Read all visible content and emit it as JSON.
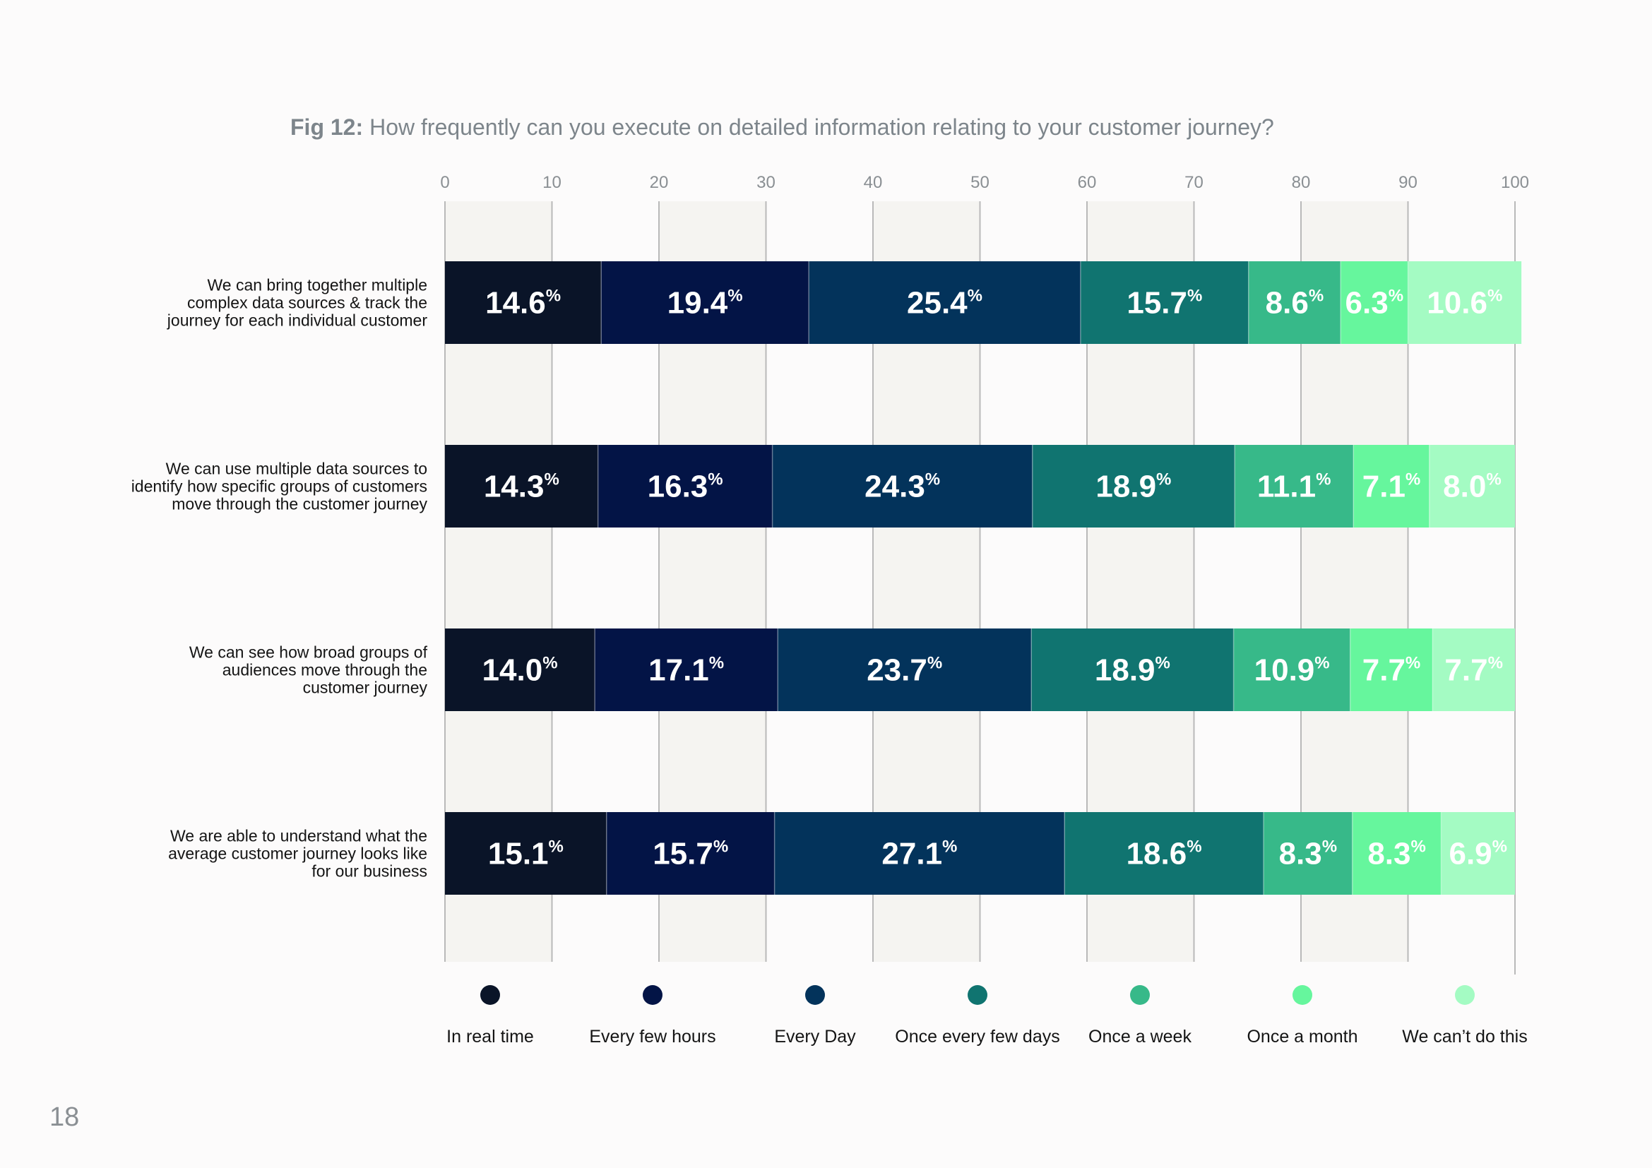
{
  "page": {
    "number": "18"
  },
  "chart_data": {
    "type": "bar",
    "orientation": "horizontal",
    "stacked": true,
    "title_prefix": "Fig 12:",
    "title": "How frequently can you execute on detailed information relating to your customer journey?",
    "xlim": [
      0,
      100
    ],
    "x_ticks": [
      0,
      10,
      20,
      30,
      40,
      50,
      60,
      70,
      80,
      90,
      100
    ],
    "grid": true,
    "legend_position": "bottom",
    "value_suffix": "%",
    "categories": [
      [
        "We can bring together multiple",
        "complex data sources & track the",
        "journey for each individual customer"
      ],
      [
        "We can use multiple data sources to",
        "identify how specific groups of customers",
        "move through the customer journey"
      ],
      [
        "We can see how broad groups of",
        "audiences move through the",
        "customer journey"
      ],
      [
        "We are able to understand what the",
        "average customer journey looks like",
        "for our business"
      ]
    ],
    "series": [
      {
        "name": "In real time",
        "color": "#0a1428",
        "values": [
          14.6,
          14.3,
          14.0,
          15.1
        ]
      },
      {
        "name": "Every few hours",
        "color": "#031446",
        "values": [
          19.4,
          16.3,
          17.1,
          15.7
        ]
      },
      {
        "name": "Every Day",
        "color": "#03335b",
        "values": [
          25.4,
          24.3,
          23.7,
          27.1
        ]
      },
      {
        "name": "Once every few days",
        "color": "#107470",
        "values": [
          15.7,
          18.9,
          18.9,
          18.6
        ]
      },
      {
        "name": "Once a week",
        "color": "#37b989",
        "values": [
          8.6,
          11.1,
          10.9,
          8.3
        ]
      },
      {
        "name": "Once a month",
        "color": "#66f69d",
        "values": [
          6.3,
          7.1,
          7.7,
          8.3
        ]
      },
      {
        "name": "We can’t do this",
        "color": "#a4fbc3",
        "values": [
          10.6,
          8.0,
          7.7,
          6.9
        ]
      }
    ]
  }
}
